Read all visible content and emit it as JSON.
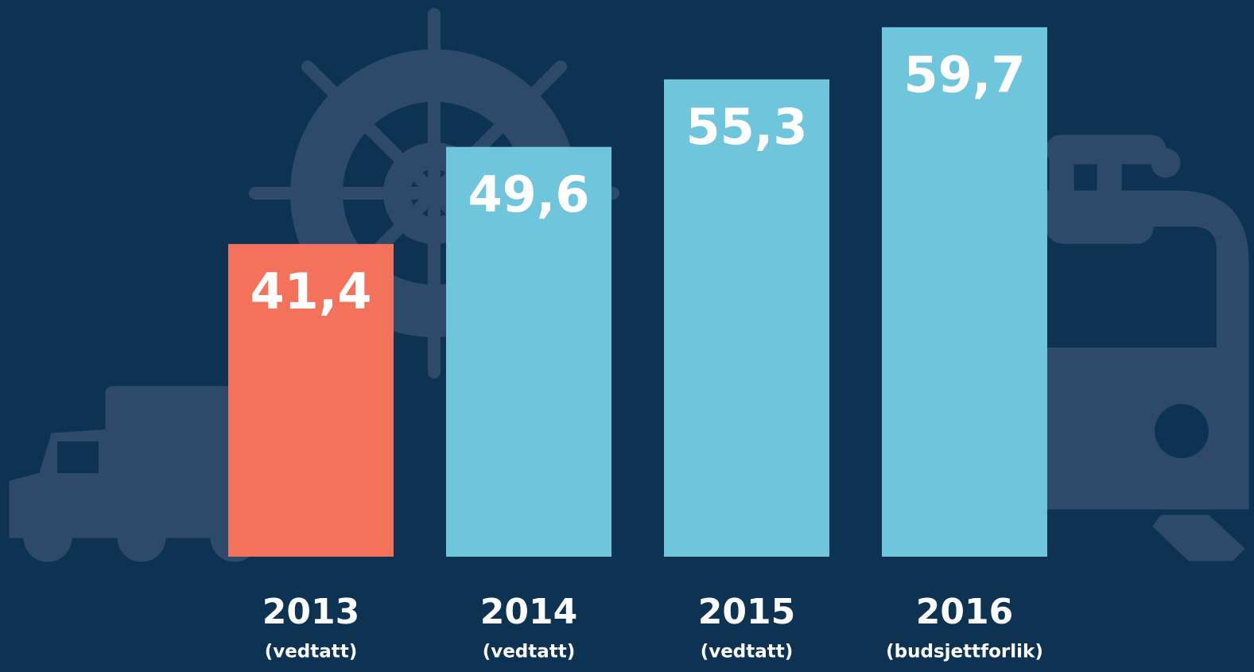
{
  "chart_data": {
    "type": "bar",
    "categories": [
      "2013",
      "2014",
      "2015",
      "2016"
    ],
    "subcategories": [
      "(vedtatt)",
      "(vedtatt)",
      "(vedtatt)",
      "(budsjettforlik)"
    ],
    "values": [
      41.4,
      49.6,
      55.3,
      59.7
    ],
    "value_labels": [
      "41,4",
      "49,6",
      "55,3",
      "59,7"
    ],
    "colors": [
      "#f4725c",
      "#6fc5db",
      "#6fc5db",
      "#6fc5db"
    ],
    "ylim": [
      15,
      62
    ]
  }
}
